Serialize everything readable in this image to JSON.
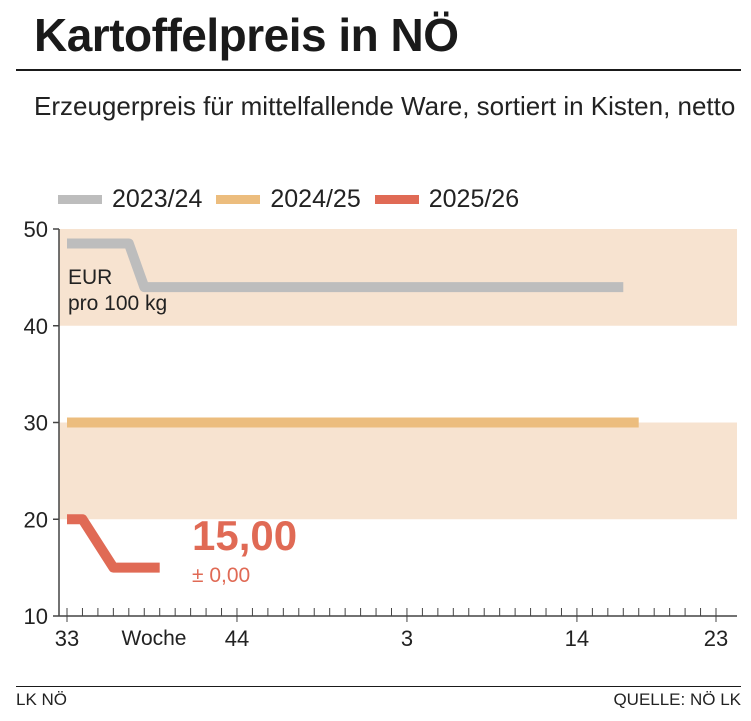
{
  "header": {
    "title": "Kartoffelpreis in NÖ",
    "subtitle": "Erzeugerpreis für mittelfallende Ware, sortiert in Kisten, netto"
  },
  "footer": {
    "left": "LK NÖ",
    "right": "QUELLE: NÖ LK"
  },
  "colors": {
    "band": "#f7e3d0",
    "series_2023_24": "#bdbdbd",
    "series_2024_25": "#ecbd7e",
    "series_2025_26": "#e06a55",
    "axis": "#444444"
  },
  "chart_data": {
    "type": "line",
    "xlabel": "Woche",
    "ylabel": "EUR pro 100 kg",
    "ylabel_lines": [
      "EUR",
      "pro 100 kg"
    ],
    "ylim": [
      10,
      50
    ],
    "yticks": [
      10,
      20,
      30,
      40,
      50
    ],
    "xticks": [
      "33",
      "44",
      "3",
      "14",
      "23"
    ],
    "weeks": [
      "33",
      "34",
      "35",
      "36",
      "37",
      "38",
      "39",
      "40",
      "41",
      "42",
      "43",
      "44",
      "45",
      "46",
      "47",
      "48",
      "49",
      "50",
      "51",
      "52",
      "1",
      "2",
      "3",
      "4",
      "5",
      "6",
      "7",
      "8",
      "9",
      "10",
      "11",
      "12",
      "13",
      "14",
      "15",
      "16",
      "17",
      "18",
      "19",
      "20",
      "21",
      "22",
      "23"
    ],
    "bands": [
      [
        40,
        50
      ],
      [
        20,
        30
      ]
    ],
    "grid": false,
    "legend_position": "top-left",
    "series": [
      {
        "name": "2023/24",
        "points": [
          [
            "33",
            48.5
          ],
          [
            "37",
            48.5
          ],
          [
            "38",
            44
          ],
          [
            "17",
            44
          ]
        ]
      },
      {
        "name": "2024/25",
        "points": [
          [
            "33",
            30
          ],
          [
            "18",
            30
          ]
        ]
      },
      {
        "name": "2025/26",
        "points": [
          [
            "33",
            20
          ],
          [
            "34",
            20
          ],
          [
            "36",
            15
          ],
          [
            "39",
            15
          ]
        ]
      }
    ],
    "annotation": {
      "value": "15,00",
      "change": "± 0,00"
    }
  }
}
